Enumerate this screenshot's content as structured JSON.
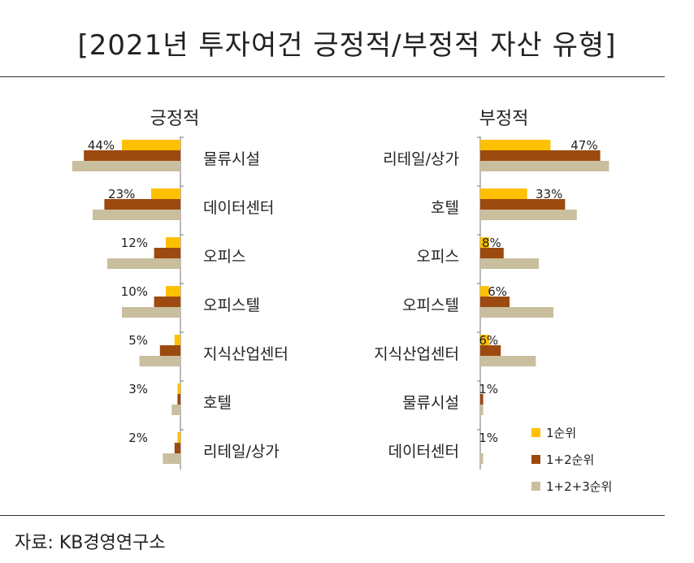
{
  "title": "[2021년 투자여건 긍정적/부정적 자산 유형]",
  "source": "자료: KB경영연구소",
  "colors": {
    "rank1": "#FFC000",
    "rank12": "#9C4A0F",
    "rank123": "#C9BF9E",
    "axis": "#777777"
  },
  "chart_data": [
    {
      "type": "bar",
      "title": "긍정적",
      "categories": [
        "물류시설",
        "데이터센터",
        "오피스",
        "오피스텔",
        "지식산업센터",
        "호텔",
        "리테일/상가"
      ],
      "data_labels": [
        "44%",
        "23%",
        "12%",
        "10%",
        "5%",
        "3%",
        "2%"
      ],
      "series": [
        {
          "name": "1순위",
          "values": [
            20,
            10,
            5,
            5,
            2,
            1,
            1
          ]
        },
        {
          "name": "1+2순위",
          "values": [
            33,
            26,
            9,
            9,
            7,
            1,
            2
          ]
        },
        {
          "name": "1+2+3순위",
          "values": [
            37,
            30,
            25,
            20,
            14,
            3,
            6
          ]
        }
      ]
    },
    {
      "type": "bar",
      "title": "부정적",
      "categories": [
        "리테일/상가",
        "호텔",
        "오피스",
        "오피스텔",
        "지식산업센터",
        "물류시설",
        "데이터센터"
      ],
      "data_labels": [
        "47%",
        "33%",
        "8%",
        "6%",
        "6%",
        "1%",
        "1%"
      ],
      "series": [
        {
          "name": "1순위",
          "values": [
            24,
            16,
            3,
            3,
            3,
            0,
            0
          ]
        },
        {
          "name": "1+2순위",
          "values": [
            41,
            29,
            8,
            10,
            7,
            1,
            0
          ]
        },
        {
          "name": "1+2+3순위",
          "values": [
            44,
            33,
            20,
            25,
            19,
            1,
            1
          ]
        }
      ]
    }
  ]
}
